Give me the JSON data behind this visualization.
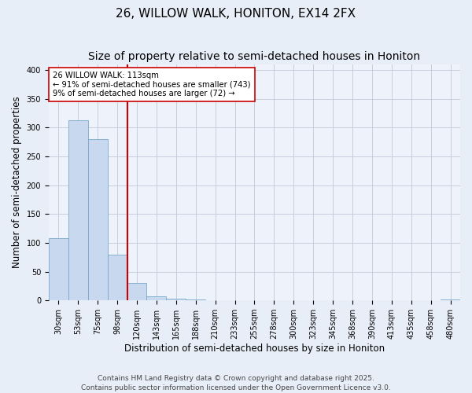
{
  "title": "26, WILLOW WALK, HONITON, EX14 2FX",
  "subtitle": "Size of property relative to semi-detached houses in Honiton",
  "xlabel": "Distribution of semi-detached houses by size in Honiton",
  "ylabel": "Number of semi-detached properties",
  "bar_labels": [
    "30sqm",
    "53sqm",
    "75sqm",
    "98sqm",
    "120sqm",
    "143sqm",
    "165sqm",
    "188sqm",
    "210sqm",
    "233sqm",
    "255sqm",
    "278sqm",
    "300sqm",
    "323sqm",
    "345sqm",
    "368sqm",
    "390sqm",
    "413sqm",
    "435sqm",
    "458sqm",
    "480sqm"
  ],
  "bar_values": [
    108,
    313,
    280,
    80,
    30,
    7,
    3,
    1,
    0,
    0,
    0,
    0,
    0,
    0,
    0,
    0,
    0,
    0,
    0,
    0,
    2
  ],
  "bar_color": "#c8d8ee",
  "bar_edge_color": "#7aa8cc",
  "vline_after_bar": 3,
  "vline_color": "#cc0000",
  "annotation_text": "26 WILLOW WALK: 113sqm\n← 91% of semi-detached houses are smaller (743)\n9% of semi-detached houses are larger (72) →",
  "annotation_box_color": "#ffffff",
  "annotation_box_edge": "#cc0000",
  "ylim": [
    0,
    410
  ],
  "yticks": [
    0,
    50,
    100,
    150,
    200,
    250,
    300,
    350,
    400
  ],
  "footnote": "Contains HM Land Registry data © Crown copyright and database right 2025.\nContains public sector information licensed under the Open Government Licence v3.0.",
  "bg_color": "#e8eef8",
  "plot_bg_color": "#eef2fa",
  "title_fontsize": 11,
  "axis_label_fontsize": 8.5,
  "tick_fontsize": 7,
  "footnote_fontsize": 6.5
}
